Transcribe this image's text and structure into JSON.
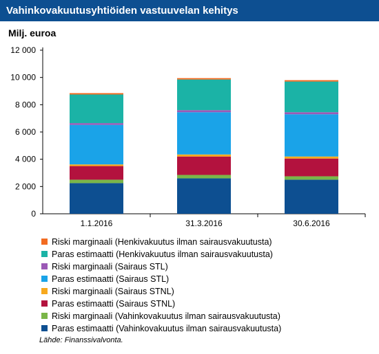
{
  "title": "Vahinkovakuutusyhtiöiden vastuuvelan kehitys",
  "unit_label": "Milj. euroa",
  "source": "Lähde: Finanssivalvonta.",
  "chart_data": {
    "type": "bar",
    "stacked": true,
    "categories": [
      "1.1.2016",
      "31.3.2016",
      "30.6.2016"
    ],
    "ylim": [
      0,
      12000
    ],
    "yticks": [
      0,
      2000,
      4000,
      6000,
      8000,
      10000,
      12000
    ],
    "ytick_labels": [
      "0",
      "2 000",
      "4 000",
      "6 000",
      "8 000",
      "10 000",
      "12 000"
    ],
    "grid": false,
    "legend_position": "bottom",
    "series": [
      {
        "name": "Paras estimaatti (Vahinkovakuutus ilman sairausvakuutusta)",
        "color": "#0d4f91",
        "values": [
          2250,
          2600,
          2500
        ]
      },
      {
        "name": "Riski marginaali (Vahinkovakuutus ilman sairausvakuutusta)",
        "color": "#7ab648",
        "values": [
          250,
          250,
          250
        ]
      },
      {
        "name": "Paras estimaatti (Sairaus STNL)",
        "color": "#b3123e",
        "values": [
          1000,
          1350,
          1300
        ]
      },
      {
        "name": "Riski marginaali (Sairaus STNL)",
        "color": "#f7a91e",
        "values": [
          120,
          150,
          150
        ]
      },
      {
        "name": "Paras estimaatti (Sairaus STL)",
        "color": "#1aa3e8",
        "values": [
          2900,
          3100,
          3100
        ]
      },
      {
        "name": "Riski marginaali (Sairaus STL)",
        "color": "#9b59b6",
        "values": [
          130,
          150,
          150
        ]
      },
      {
        "name": "Paras estimaatti (Henkivakuutus ilman sairausvakuutusta)",
        "color": "#1bb3a6",
        "values": [
          2100,
          2250,
          2250
        ]
      },
      {
        "name": "Riski marginaali (Henkivakuutus ilman sairausvakuutusta)",
        "color": "#f26b21",
        "values": [
          100,
          100,
          100
        ]
      }
    ]
  }
}
